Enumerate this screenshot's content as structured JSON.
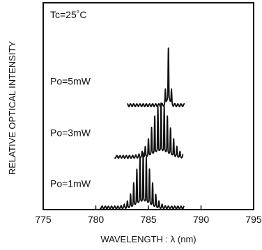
{
  "chart_data": {
    "type": "line",
    "title": "",
    "xlabel": "WAVELENGTH : λ (nm)",
    "ylabel": "RELATIVE OPTICAL INTENSITY",
    "xlim": [
      775,
      795
    ],
    "x_ticks": [
      "775",
      "780",
      "785",
      "790",
      "795"
    ],
    "ylim": [
      0,
      1
    ],
    "grid": false,
    "legend": "none",
    "condition_label": "Tc=25˚C",
    "series": [
      {
        "label": "Po=1mW",
        "baseline": 0.01,
        "peak_nm": 784.5,
        "range_nm": [
          780.4,
          788.4
        ],
        "peak_height": 0.26,
        "envelope_sigma_nm": 0.7,
        "mode_spacing_nm": 0.3
      },
      {
        "label": "Po=3mW",
        "baseline": 0.255,
        "peak_nm": 786.2,
        "range_nm": [
          781.8,
          788.3
        ],
        "peak_height": 0.255,
        "envelope_sigma_nm": 0.8,
        "mode_spacing_nm": 0.3
      },
      {
        "label": "Po=5mW",
        "baseline": 0.505,
        "peak_nm": 786.9,
        "range_nm": [
          783.0,
          788.4
        ],
        "peak_height": 0.27,
        "envelope_sigma_nm": 0.18,
        "mode_spacing_nm": 0.3
      }
    ]
  }
}
